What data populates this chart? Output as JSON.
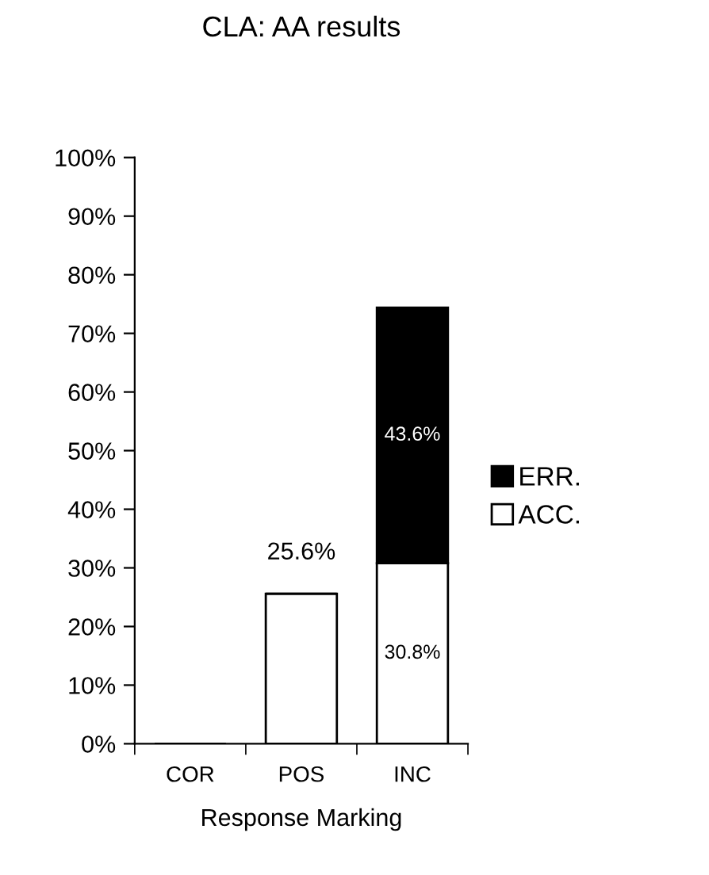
{
  "chart_data": {
    "type": "bar",
    "title": "CLA: AA results",
    "xlabel": "Response Marking",
    "categories": [
      "COR",
      "POS",
      "INC"
    ],
    "stacked": true,
    "series": [
      {
        "name": "ACC.",
        "color": "#ffffff",
        "values": [
          0,
          25.6,
          30.8
        ],
        "value_labels": [
          null,
          "25.6%",
          "30.8%"
        ]
      },
      {
        "name": "ERR.",
        "color": "#000000",
        "values": [
          0,
          0,
          43.6
        ],
        "value_labels": [
          null,
          null,
          "43.6%"
        ]
      }
    ],
    "ylim": [
      0,
      100
    ],
    "yticks": [
      {
        "value": 0,
        "label": "0%"
      },
      {
        "value": 10,
        "label": "10%"
      },
      {
        "value": 20,
        "label": "20%"
      },
      {
        "value": 30,
        "label": "30%"
      },
      {
        "value": 40,
        "label": "40%"
      },
      {
        "value": 50,
        "label": "50%"
      },
      {
        "value": 60,
        "label": "60%"
      },
      {
        "value": 70,
        "label": "70%"
      },
      {
        "value": 80,
        "label": "80%"
      },
      {
        "value": 90,
        "label": "90%"
      },
      {
        "value": 100,
        "label": "100%"
      }
    ],
    "grid": false,
    "legend": "right"
  }
}
